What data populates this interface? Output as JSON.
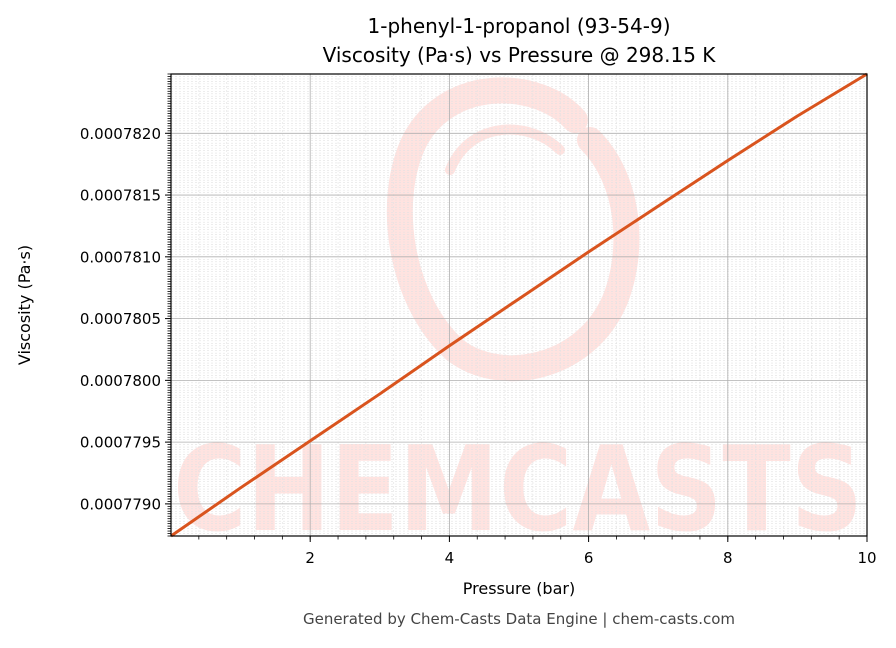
{
  "title_line1": "1-phenyl-1-propanol (93-54-9)",
  "title_line2": "Viscosity (Pa·s) vs Pressure @ 298.15 K",
  "footer": "Generated by Chem-Casts Data Engine | chem-casts.com",
  "watermark": "CHEMCASTS",
  "colors": {
    "line": "#d9541e",
    "watermark": "#ffe3e0",
    "grid_major": "#b0b0b0",
    "grid_minor": "#e2e2e2"
  },
  "chart_data": {
    "type": "line",
    "title": "1-phenyl-1-propanol (93-54-9)\nViscosity (Pa·s) vs Pressure @ 298.15 K",
    "xlabel": "Pressure (bar)",
    "ylabel": "Viscosity (Pa·s)",
    "xlim": [
      0.0,
      10.0
    ],
    "ylim": [
      0.00077874,
      0.00078248
    ],
    "xticks": [
      2,
      4,
      6,
      8,
      10
    ],
    "xtick_labels": [
      "2",
      "4",
      "6",
      "8",
      "10"
    ],
    "yticks": [
      0.000779,
      0.0007795,
      0.00078,
      0.0007805,
      0.000781,
      0.0007815,
      0.000782
    ],
    "ytick_labels": [
      "0.0007790",
      "0.0007795",
      "0.0007800",
      "0.0007805",
      "0.0007810",
      "0.0007815",
      "0.0007820"
    ],
    "grid": true,
    "minor_grid": true,
    "series": [
      {
        "x": [
          0.0,
          1.0,
          2.0,
          3.0,
          4.0,
          5.0,
          6.0,
          7.0,
          8.0,
          9.0,
          10.0
        ],
        "values": [
          0.00077874,
          0.00077913,
          0.00077951,
          0.00077989,
          0.00078028,
          0.00078066,
          0.00078104,
          0.00078141,
          0.00078178,
          0.00078214,
          0.00078248
        ]
      }
    ]
  }
}
